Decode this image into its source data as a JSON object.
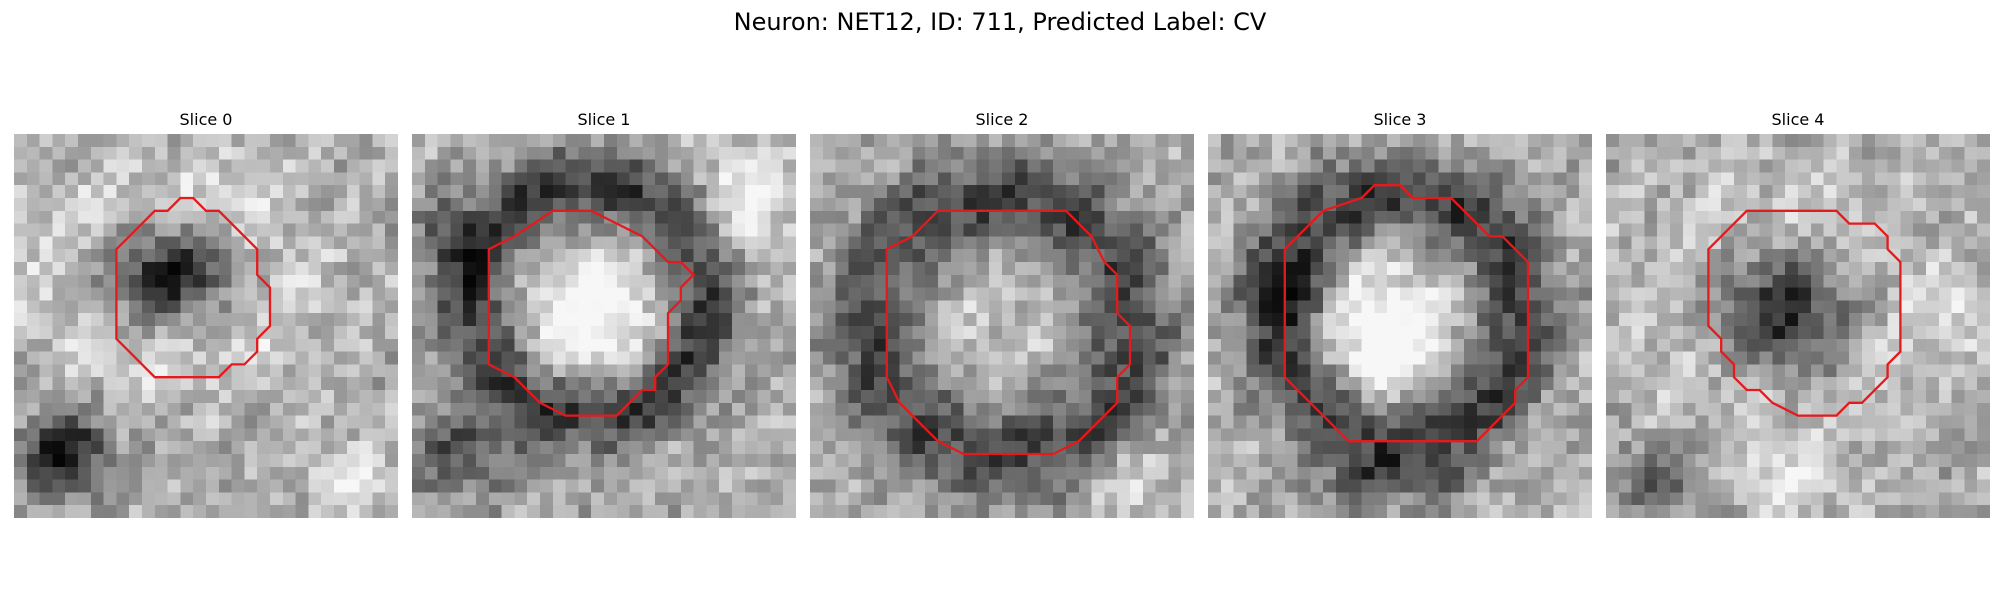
{
  "figure": {
    "title": "Neuron: NET12, ID: 711, Predicted Label: CV"
  },
  "panels": [
    {
      "title": "Slice 0"
    },
    {
      "title": "Slice 1"
    },
    {
      "title": "Slice 2"
    },
    {
      "title": "Slice 3"
    },
    {
      "title": "Slice 4"
    }
  ],
  "colors": {
    "contour": "#e41a1c",
    "colormap": "grayscale"
  }
}
